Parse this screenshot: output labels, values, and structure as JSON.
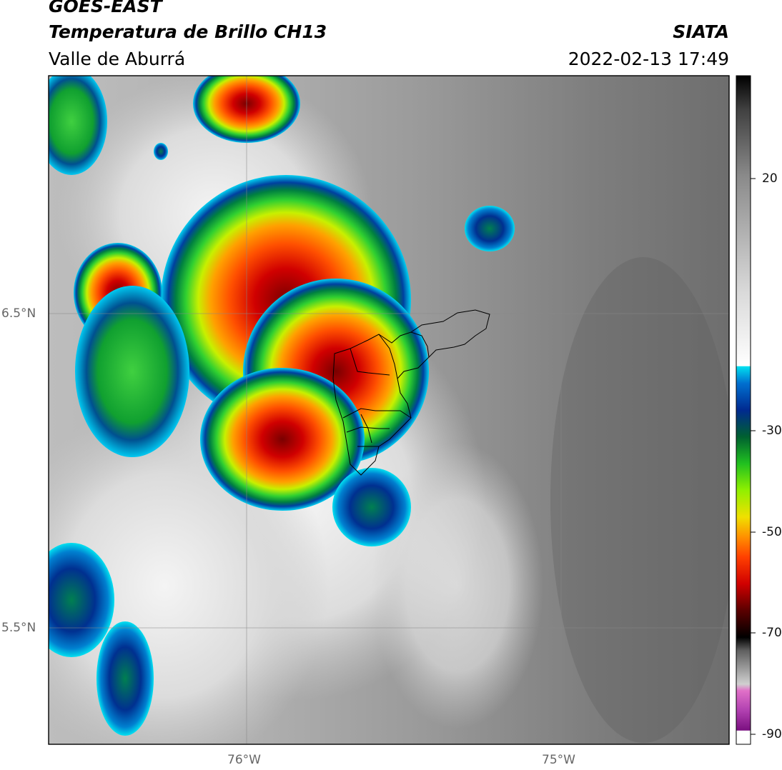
{
  "header": {
    "title_line1": "GOES-EAST",
    "title_line2": "Temperatura de Brillo CH13",
    "region": "Valle de Aburrá",
    "organization": "SIATA",
    "timestamp": "2022-02-13 17:49"
  },
  "map": {
    "lat_labels": [
      "6.5°N",
      "5.5°N"
    ],
    "lon_labels": [
      "76°W",
      "75°W"
    ],
    "background_colors": {
      "warm": "#6a6a6a",
      "mid": "#9a9a9a",
      "cool": "#e8e8e8"
    }
  },
  "colorbar": {
    "tick_labels": [
      "20",
      "-30",
      "-50",
      "-70",
      "-90"
    ],
    "colors": [
      "#ffffff",
      "#7a1080",
      "#b040b0",
      "#e070c8",
      "#d0d0d0",
      "#a0a0a0",
      "#606060",
      "#000000",
      "#5a0000",
      "#d00000",
      "#ff4000",
      "#ff9000",
      "#f0e000",
      "#90f000",
      "#20c020",
      "#006030",
      "#002a90",
      "#0070d0",
      "#00e0f0",
      "#ffffff",
      "#c0c0c0",
      "#808080",
      "#404040",
      "#000000"
    ]
  }
}
